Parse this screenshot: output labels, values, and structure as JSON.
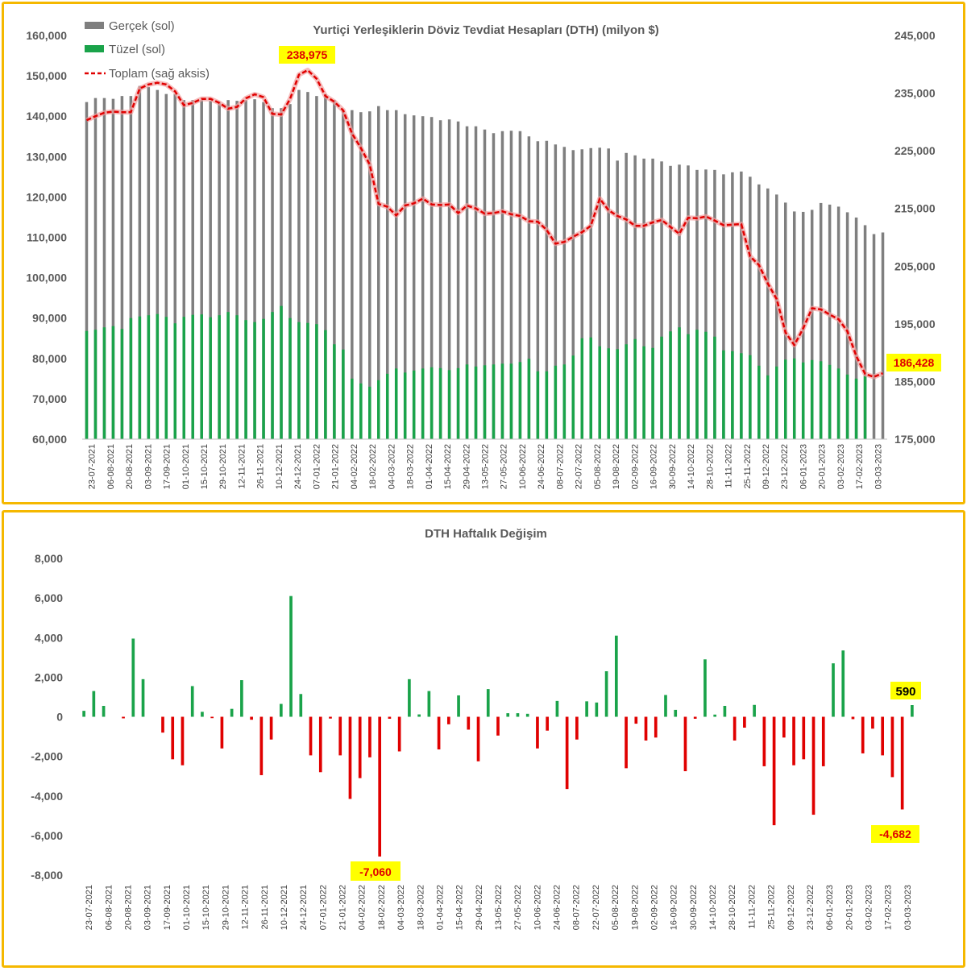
{
  "colors": {
    "gercek": "#7f7f7f",
    "tuzel": "#1aa34a",
    "toplam": "#e00000",
    "positive": "#1aa34a",
    "negative": "#e00000",
    "highlight": "#ffff00",
    "border": "#f5b800"
  },
  "chart_data": [
    {
      "type": "bar",
      "title": "Yurtiçi Yerleşiklerin Döviz Tevdiat Hesapları (DTH) (milyon $)",
      "legend_position": "top-left",
      "legend": [
        "Gerçek (sol)",
        "Tüzel (sol)",
        "Toplam (sağ aksis)"
      ],
      "ylim_left": [
        60000,
        160000
      ],
      "ylim_right": [
        175000,
        245000
      ],
      "yticks_left": [
        "60,000",
        "70,000",
        "80,000",
        "90,000",
        "100,000",
        "110,000",
        "120,000",
        "130,000",
        "140,000",
        "150,000",
        "160,000"
      ],
      "yticks_right": [
        "175,000",
        "185,000",
        "195,000",
        "205,000",
        "215,000",
        "225,000",
        "235,000",
        "245,000"
      ],
      "xtick_labels": [
        "23-07-2021",
        "06-08-2021",
        "20-08-2021",
        "03-09-2021",
        "17-09-2021",
        "01-10-2021",
        "15-10-2021",
        "29-10-2021",
        "12-11-2021",
        "26-11-2021",
        "10-12-2021",
        "24-12-2021",
        "07-01-2022",
        "21-01-2022",
        "04-02-2022",
        "18-02-2022",
        "04-03-2022",
        "18-03-2022",
        "01-04-2022",
        "15-04-2022",
        "29-04-2022",
        "13-05-2022",
        "27-05-2022",
        "10-06-2022",
        "24-06-2022",
        "08-07-2022",
        "22-07-2022",
        "05-08-2022",
        "19-08-2022",
        "02-09-2022",
        "16-09-2022",
        "30-09-2022",
        "14-10-2022",
        "28-10-2022",
        "11-11-2022",
        "25-11-2022",
        "09-12-2022",
        "23-12-2022",
        "06-01-2023",
        "20-01-2023",
        "03-02-2023",
        "17-02-2023",
        "03-03-2023"
      ],
      "series": [
        {
          "name": "Gerçek (sol)",
          "axis": "left",
          "type": "bar",
          "values": [
            143500,
            144500,
            144500,
            144300,
            145000,
            145000,
            147500,
            147200,
            146500,
            145500,
            145500,
            144000,
            144000,
            144000,
            143800,
            143500,
            144000,
            143800,
            144000,
            144200,
            143500,
            142000,
            142000,
            143000,
            146500,
            146000,
            145000,
            145500,
            144000,
            141500,
            141500,
            141000,
            141200,
            142500,
            141500,
            141500,
            140500,
            140200,
            140000,
            139800,
            139000,
            139200,
            138700,
            137500,
            137500,
            136700,
            135800,
            136300,
            136400,
            136300,
            135000,
            133800,
            133900,
            133000,
            132400,
            131600,
            131800,
            132100,
            132200,
            132000,
            129000,
            130900,
            130300,
            129500,
            129500,
            128800,
            127700,
            128000,
            127800,
            126700,
            126800,
            126700,
            125600,
            126100,
            126300,
            125000,
            123100,
            122100,
            120600,
            118600,
            116400,
            116300,
            116800,
            118500,
            118100,
            117600,
            116200,
            114900,
            113000,
            110800,
            111200
          ]
        },
        {
          "name": "Tüzel (sol)",
          "axis": "left",
          "type": "bar",
          "values": [
            86800,
            87100,
            87700,
            88000,
            87300,
            90000,
            90400,
            90700,
            91000,
            90300,
            88700,
            90300,
            90800,
            90900,
            90200,
            90700,
            91500,
            90700,
            89500,
            89000,
            89800,
            91500,
            93000,
            90000,
            89000,
            88800,
            88500,
            87000,
            83500,
            82200,
            75000,
            73800,
            73000,
            74600,
            76200,
            77500,
            76500,
            77000,
            77500,
            77800,
            77600,
            77100,
            77600,
            78500,
            78000,
            78300,
            78500,
            78700,
            78700,
            79100,
            79900,
            76800,
            76800,
            78200,
            78500,
            80700,
            85000,
            85200,
            83000,
            82500,
            82300,
            83500,
            84800,
            83000,
            82600,
            85400,
            86700,
            87700,
            86000,
            87100,
            86600,
            85400,
            82000,
            81800,
            81300,
            80800,
            78200,
            75800,
            78000,
            79700,
            80000,
            79000,
            79600,
            79300,
            78400,
            77500,
            76000,
            75000,
            75600
          ]
        },
        {
          "name": "Toplam (sağ aksis)",
          "axis": "right",
          "type": "line",
          "values": [
            230300,
            231000,
            231600,
            231800,
            231700,
            231700,
            235800,
            236500,
            236800,
            236500,
            235300,
            232900,
            233300,
            234000,
            234000,
            233300,
            232300,
            232600,
            234100,
            234800,
            234300,
            231400,
            231300,
            234000,
            238200,
            238975,
            237500,
            234500,
            233500,
            232000,
            228000,
            225500,
            222600,
            215800,
            215300,
            213800,
            215500,
            215900,
            216700,
            215700,
            215600,
            215700,
            214200,
            215500,
            215000,
            214100,
            214200,
            214500,
            214000,
            213700,
            212800,
            212700,
            211300,
            208900,
            209200,
            210100,
            210900,
            212000,
            216700,
            214700,
            213700,
            213100,
            212000,
            212000,
            212600,
            213000,
            211800,
            210600,
            213400,
            213300,
            213600,
            212900,
            212100,
            212200,
            212300,
            206700,
            205200,
            202000,
            199300,
            193500,
            191300,
            194200,
            197700,
            197500,
            196600,
            195800,
            193700,
            189400,
            186300,
            185800,
            186428
          ]
        }
      ],
      "annotations": [
        "238,975",
        "186,428"
      ]
    },
    {
      "type": "bar",
      "title": "DTH Haftalık Değişim",
      "ylim": [
        -8000,
        8000
      ],
      "yticks": [
        "-8,000",
        "-6,000",
        "-4,000",
        "-2,000",
        "0",
        "2,000",
        "4,000",
        "6,000",
        "8,000"
      ],
      "xtick_labels": [
        "23-07-2021",
        "06-08-2021",
        "20-08-2021",
        "03-09-2021",
        "17-09-2021",
        "01-10-2021",
        "15-10-2021",
        "29-10-2021",
        "12-11-2021",
        "26-11-2021",
        "10-12-2021",
        "24-12-2021",
        "07-01-2022",
        "21-01-2022",
        "04-02-2022",
        "18-02-2022",
        "04-03-2022",
        "18-03-2022",
        "01-04-2022",
        "15-04-2022",
        "29-04-2022",
        "13-05-2022",
        "27-05-2022",
        "10-06-2022",
        "24-06-2022",
        "08-07-2022",
        "22-07-2022",
        "05-08-2022",
        "19-08-2022",
        "02-09-2022",
        "16-09-2022",
        "30-09-2022",
        "14-10-2022",
        "28-10-2022",
        "11-11-2022",
        "25-11-2022",
        "09-12-2022",
        "23-12-2022",
        "06-01-2023",
        "20-01-2023",
        "03-02-2023",
        "17-02-2023",
        "03-03-2023"
      ],
      "values": [
        300,
        1300,
        550,
        0,
        -80,
        3950,
        1900,
        0,
        -800,
        -2150,
        -2450,
        1550,
        250,
        -70,
        -1600,
        400,
        1850,
        -150,
        -2950,
        -1150,
        650,
        6100,
        1150,
        -1950,
        -2800,
        -90,
        -1950,
        -4150,
        -3100,
        -2050,
        -7060,
        -100,
        -1750,
        1900,
        120,
        1300,
        -1650,
        -380,
        1080,
        -650,
        -2250,
        1400,
        -950,
        180,
        180,
        150,
        -1600,
        -700,
        800,
        -3650,
        -1150,
        780,
        720,
        2300,
        4100,
        -2600,
        -350,
        -1200,
        -1050,
        1100,
        350,
        -2750,
        -100,
        2900,
        110,
        550,
        -1200,
        -550,
        600,
        -2500,
        -5480,
        -1050,
        -2450,
        -2150,
        -4950,
        -2500,
        2700,
        3350,
        -120,
        -1850,
        -600,
        -1950,
        -3050,
        -4682,
        590
      ],
      "annotations": [
        "-7,060",
        "590",
        "-4,682"
      ]
    }
  ]
}
